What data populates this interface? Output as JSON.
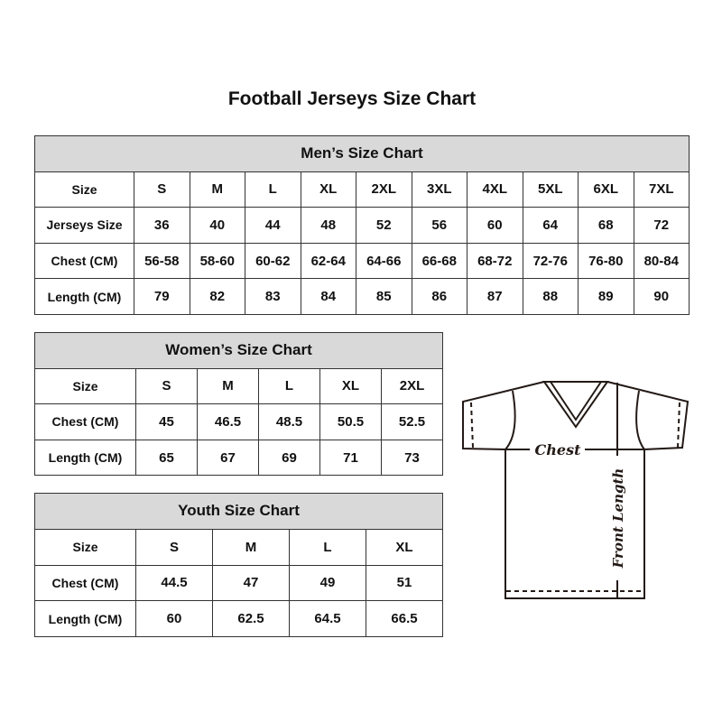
{
  "title": "Football Jerseys Size Chart",
  "men": {
    "header": "Men’s Size Chart",
    "rows": [
      [
        "Size",
        "S",
        "M",
        "L",
        "XL",
        "2XL",
        "3XL",
        "4XL",
        "5XL",
        "6XL",
        "7XL"
      ],
      [
        "Jerseys Size",
        "36",
        "40",
        "44",
        "48",
        "52",
        "56",
        "60",
        "64",
        "68",
        "72"
      ],
      [
        "Chest (CM)",
        "56-58",
        "58-60",
        "60-62",
        "62-64",
        "64-66",
        "66-68",
        "68-72",
        "72-76",
        "76-80",
        "80-84"
      ],
      [
        "Length (CM)",
        "79",
        "82",
        "83",
        "84",
        "85",
        "86",
        "87",
        "88",
        "89",
        "90"
      ]
    ]
  },
  "women": {
    "header": "Women’s Size Chart",
    "rows": [
      [
        "Size",
        "S",
        "M",
        "L",
        "XL",
        "2XL"
      ],
      [
        "Chest (CM)",
        "45",
        "46.5",
        "48.5",
        "50.5",
        "52.5"
      ],
      [
        "Length (CM)",
        "65",
        "67",
        "69",
        "71",
        "73"
      ]
    ]
  },
  "youth": {
    "header": "Youth Size Chart",
    "rows": [
      [
        "Size",
        "S",
        "M",
        "L",
        "XL"
      ],
      [
        "Chest (CM)",
        "44.5",
        "47",
        "49",
        "51"
      ],
      [
        "Length (CM)",
        "60",
        "62.5",
        "64.5",
        "66.5"
      ]
    ]
  },
  "diagram": {
    "chest_label": "Chest",
    "length_label": "Front Length"
  }
}
